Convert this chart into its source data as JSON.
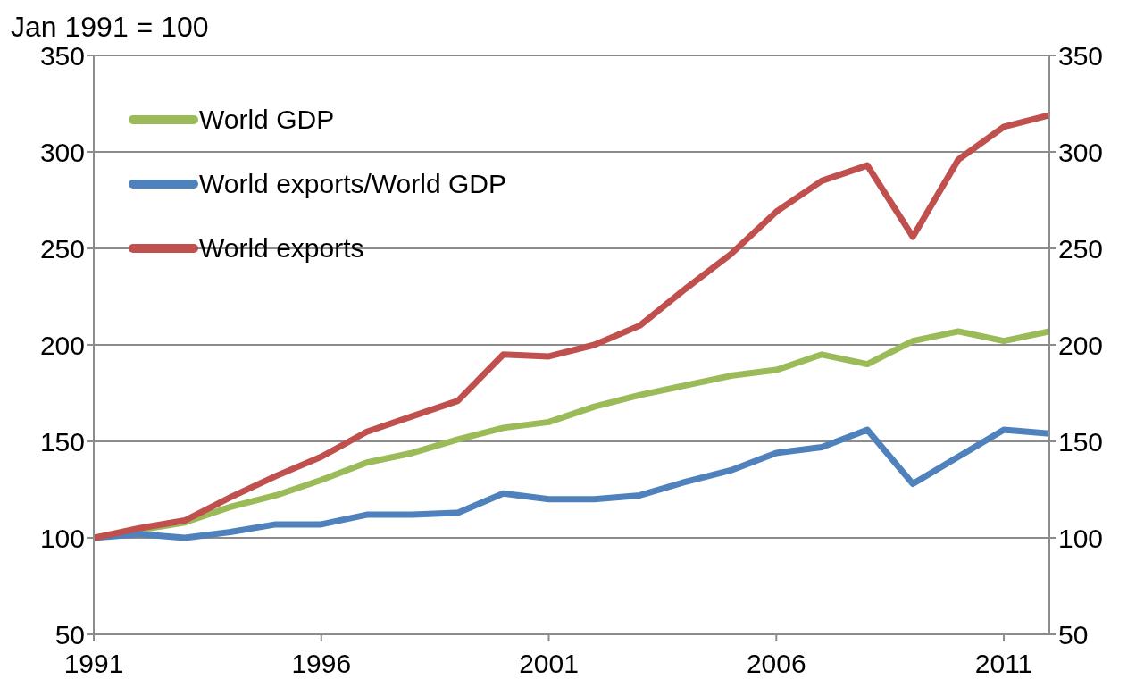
{
  "chart_data": {
    "type": "line",
    "ylabel": "Jan 1991 = 100",
    "x": [
      1991,
      1992,
      1993,
      1994,
      1995,
      1996,
      1997,
      1998,
      1999,
      2000,
      2001,
      2002,
      2003,
      2004,
      2005,
      2006,
      2007,
      2008,
      2009,
      2010,
      2011,
      2012
    ],
    "series": [
      {
        "name": "World GDP",
        "color": "#9bbb59",
        "values": [
          100,
          104,
          108,
          116,
          122,
          130,
          139,
          144,
          151,
          157,
          160,
          168,
          174,
          179,
          184,
          187,
          195,
          190,
          202,
          207,
          202,
          207
        ]
      },
      {
        "name": "World exports/World GDP",
        "color": "#4f81bd",
        "values": [
          100,
          102,
          100,
          103,
          107,
          107,
          112,
          112,
          113,
          123,
          120,
          120,
          122,
          129,
          135,
          144,
          147,
          156,
          128,
          142,
          156,
          154
        ]
      },
      {
        "name": "World exports",
        "color": "#c0504d",
        "values": [
          100,
          105,
          109,
          121,
          132,
          142,
          155,
          163,
          171,
          195,
          194,
          200,
          210,
          229,
          247,
          269,
          285,
          293,
          256,
          296,
          313,
          319
        ]
      }
    ],
    "xlim": [
      1991,
      2012
    ],
    "xticks": [
      1991,
      1996,
      2001,
      2006,
      2011
    ],
    "ylim": [
      50,
      350
    ],
    "yticks": [
      50,
      100,
      150,
      200,
      250,
      300,
      350
    ],
    "y2lim": [
      50,
      350
    ],
    "y2ticks": [
      50,
      100,
      150,
      200,
      250,
      300,
      350
    ],
    "grid": "y",
    "legend": "top left",
    "marker": "none",
    "line_style": "solid"
  }
}
